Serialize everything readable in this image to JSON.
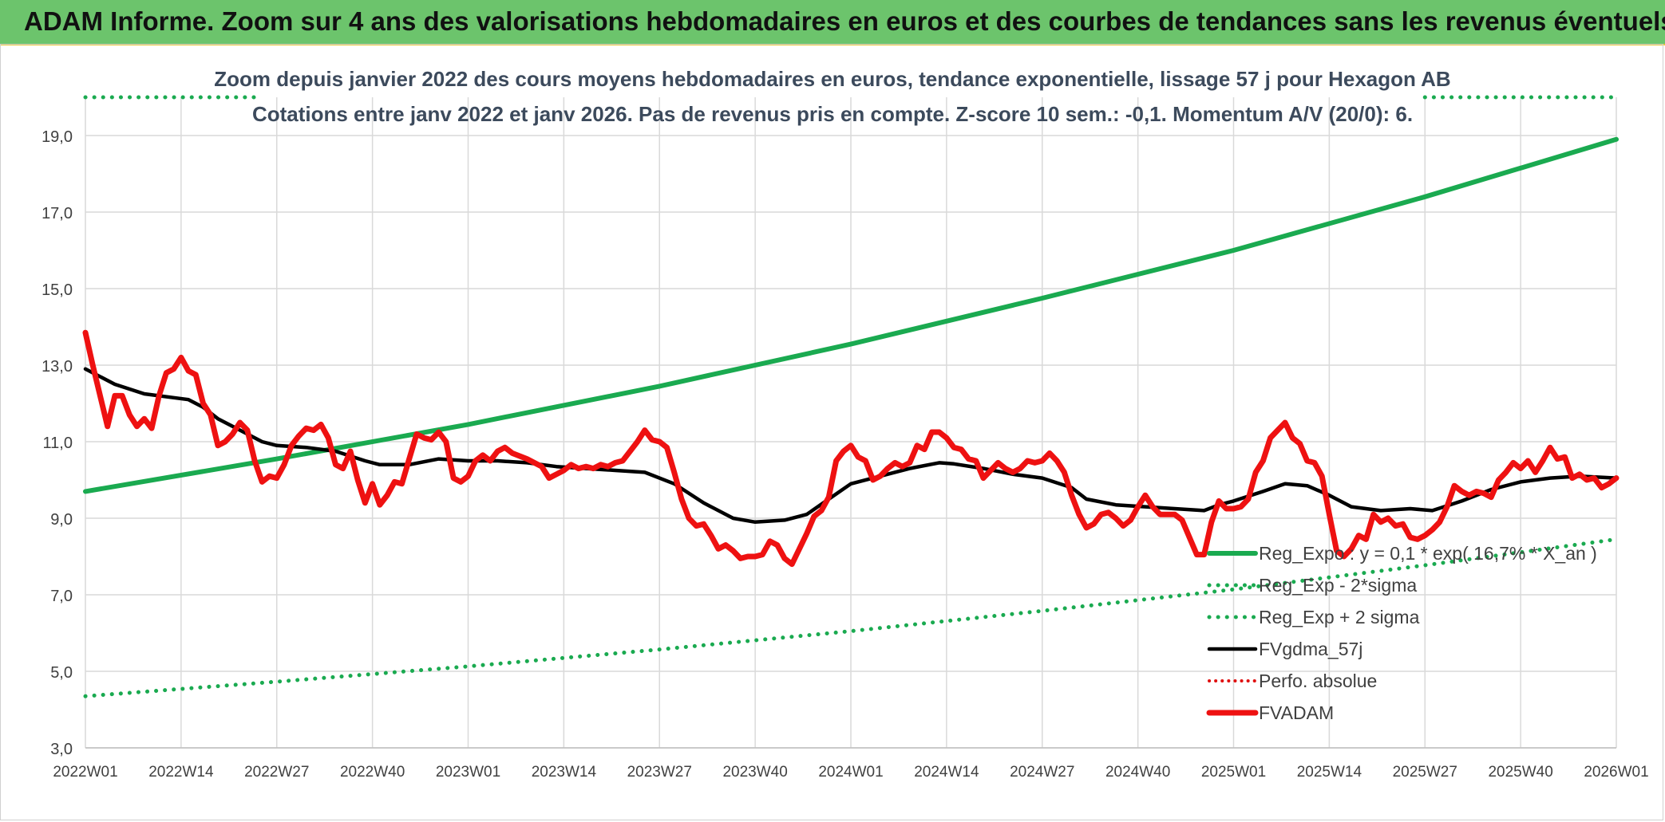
{
  "banner": {
    "title": "ADAM Informe. Zoom sur 4 ans des valorisations hebdomadaires en euros et des courbes de tendances sans les revenus éventuels"
  },
  "chart_data": {
    "type": "line",
    "title": "Zoom depuis janvier 2022 des cours moyens hebdomadaires en euros, tendance exponentielle, lissage 57 j pour Hexagon AB",
    "subtitle": "Cotations entre janv 2022 et janv 2026. Pas de revenus pris en compte. Z-score 10 sem.: -0,1. Momentum A/V (20/0): 6.",
    "xlabel": "",
    "ylabel": "",
    "ylim": [
      3,
      20
    ],
    "yticks": [
      "3,0",
      "5,0",
      "7,0",
      "9,0",
      "11,0",
      "13,0",
      "15,0",
      "17,0",
      "19,0"
    ],
    "ytick_values": [
      3,
      5,
      7,
      9,
      11,
      13,
      15,
      17,
      19
    ],
    "xlim": [
      0,
      208
    ],
    "xticks": [
      "2022W01",
      "2022W14",
      "2022W27",
      "2022W40",
      "2023W01",
      "2023W14",
      "2023W27",
      "2023W40",
      "2024W01",
      "2024W14",
      "2024W27",
      "2024W40",
      "2025W01",
      "2025W14",
      "2025W27",
      "2025W40",
      "2026W01"
    ],
    "xtick_positions": [
      0,
      13,
      26,
      39,
      52,
      65,
      78,
      91,
      104,
      117,
      130,
      143,
      156,
      169,
      182,
      195,
      208
    ],
    "grid": true,
    "legend_position": "bottom-right",
    "colors": {
      "reg_expo": "#1aaa50",
      "bands": "#1aaa50",
      "fvgdma": "#000000",
      "perfo": "#e01010",
      "fvadam": "#ee1111"
    },
    "series": [
      {
        "name": "Reg_Expo : y = 0,1 * exp( 16,7% * X_an )",
        "style": "solid",
        "points": [
          [
            0,
            9.7
          ],
          [
            26,
            10.55
          ],
          [
            52,
            11.45
          ],
          [
            78,
            12.45
          ],
          [
            104,
            13.55
          ],
          [
            130,
            14.75
          ],
          [
            156,
            16.0
          ],
          [
            182,
            17.4
          ],
          [
            208,
            18.9
          ]
        ]
      },
      {
        "name": "Reg_Exp - 2*sigma",
        "style": "dotted",
        "points": [
          [
            0,
            4.35
          ],
          [
            26,
            4.73
          ],
          [
            52,
            5.13
          ],
          [
            78,
            5.57
          ],
          [
            104,
            6.05
          ],
          [
            130,
            6.58
          ],
          [
            156,
            7.14
          ],
          [
            182,
            7.77
          ],
          [
            208,
            8.45
          ]
        ]
      },
      {
        "name": "Reg_Exp + 2 sigma",
        "style": "dotted",
        "points": [
          [
            0,
            20.0
          ],
          [
            208,
            20.0
          ]
        ]
      },
      {
        "name": "FVgdma_57j",
        "style": "solid",
        "points": [
          [
            0,
            12.9
          ],
          [
            4,
            12.5
          ],
          [
            8,
            12.25
          ],
          [
            12,
            12.15
          ],
          [
            14,
            12.1
          ],
          [
            16,
            11.9
          ],
          [
            18,
            11.6
          ],
          [
            20,
            11.4
          ],
          [
            22,
            11.2
          ],
          [
            24,
            11.0
          ],
          [
            26,
            10.9
          ],
          [
            30,
            10.85
          ],
          [
            34,
            10.75
          ],
          [
            38,
            10.5
          ],
          [
            40,
            10.4
          ],
          [
            44,
            10.4
          ],
          [
            48,
            10.55
          ],
          [
            52,
            10.5
          ],
          [
            56,
            10.5
          ],
          [
            60,
            10.45
          ],
          [
            64,
            10.35
          ],
          [
            68,
            10.3
          ],
          [
            72,
            10.25
          ],
          [
            76,
            10.2
          ],
          [
            80,
            9.9
          ],
          [
            84,
            9.4
          ],
          [
            88,
            9.0
          ],
          [
            91,
            8.9
          ],
          [
            95,
            8.95
          ],
          [
            98,
            9.1
          ],
          [
            101,
            9.5
          ],
          [
            104,
            9.9
          ],
          [
            108,
            10.1
          ],
          [
            112,
            10.3
          ],
          [
            116,
            10.45
          ],
          [
            118,
            10.42
          ],
          [
            122,
            10.3
          ],
          [
            126,
            10.15
          ],
          [
            130,
            10.05
          ],
          [
            134,
            9.8
          ],
          [
            136,
            9.5
          ],
          [
            140,
            9.35
          ],
          [
            144,
            9.3
          ],
          [
            148,
            9.25
          ],
          [
            152,
            9.2
          ],
          [
            154,
            9.35
          ],
          [
            156,
            9.45
          ],
          [
            160,
            9.7
          ],
          [
            163,
            9.9
          ],
          [
            166,
            9.85
          ],
          [
            169,
            9.6
          ],
          [
            172,
            9.3
          ],
          [
            176,
            9.2
          ],
          [
            180,
            9.25
          ],
          [
            183,
            9.2
          ],
          [
            187,
            9.45
          ],
          [
            191,
            9.75
          ],
          [
            195,
            9.95
          ],
          [
            199,
            10.05
          ],
          [
            203,
            10.1
          ],
          [
            208,
            10.05
          ]
        ]
      },
      {
        "name": "Perfo. absolue",
        "style": "dotted",
        "points": []
      },
      {
        "name": "FVADAM",
        "style": "solid",
        "points": [
          [
            0,
            13.85
          ],
          [
            1,
            13.0
          ],
          [
            3,
            11.4
          ],
          [
            4,
            12.2
          ],
          [
            5,
            12.2
          ],
          [
            6,
            11.7
          ],
          [
            7,
            11.4
          ],
          [
            8,
            11.6
          ],
          [
            9,
            11.35
          ],
          [
            10,
            12.2
          ],
          [
            11,
            12.8
          ],
          [
            12,
            12.9
          ],
          [
            13,
            13.2
          ],
          [
            14,
            12.85
          ],
          [
            15,
            12.75
          ],
          [
            16,
            12.0
          ],
          [
            17,
            11.7
          ],
          [
            18,
            10.9
          ],
          [
            19,
            11.0
          ],
          [
            20,
            11.2
          ],
          [
            21,
            11.5
          ],
          [
            22,
            11.3
          ],
          [
            23,
            10.5
          ],
          [
            24,
            9.95
          ],
          [
            25,
            10.1
          ],
          [
            26,
            10.05
          ],
          [
            27,
            10.4
          ],
          [
            28,
            10.9
          ],
          [
            29,
            11.15
          ],
          [
            30,
            11.35
          ],
          [
            31,
            11.3
          ],
          [
            32,
            11.45
          ],
          [
            33,
            11.1
          ],
          [
            34,
            10.4
          ],
          [
            35,
            10.3
          ],
          [
            36,
            10.75
          ],
          [
            37,
            10.0
          ],
          [
            38,
            9.4
          ],
          [
            39,
            9.9
          ],
          [
            40,
            9.35
          ],
          [
            41,
            9.6
          ],
          [
            42,
            9.95
          ],
          [
            43,
            9.9
          ],
          [
            44,
            10.55
          ],
          [
            45,
            11.2
          ],
          [
            46,
            11.1
          ],
          [
            47,
            11.05
          ],
          [
            48,
            11.25
          ],
          [
            49,
            11.0
          ],
          [
            50,
            10.05
          ],
          [
            51,
            9.95
          ],
          [
            52,
            10.1
          ],
          [
            53,
            10.5
          ],
          [
            54,
            10.65
          ],
          [
            55,
            10.5
          ],
          [
            56,
            10.75
          ],
          [
            57,
            10.85
          ],
          [
            58,
            10.7
          ],
          [
            60,
            10.55
          ],
          [
            62,
            10.35
          ],
          [
            63,
            10.05
          ],
          [
            64,
            10.15
          ],
          [
            65,
            10.25
          ],
          [
            66,
            10.4
          ],
          [
            67,
            10.3
          ],
          [
            68,
            10.35
          ],
          [
            69,
            10.3
          ],
          [
            70,
            10.4
          ],
          [
            71,
            10.35
          ],
          [
            72,
            10.45
          ],
          [
            73,
            10.5
          ],
          [
            74,
            10.75
          ],
          [
            75,
            11.0
          ],
          [
            76,
            11.3
          ],
          [
            77,
            11.05
          ],
          [
            78,
            11.0
          ],
          [
            79,
            10.85
          ],
          [
            80,
            10.2
          ],
          [
            81,
            9.5
          ],
          [
            82,
            9.0
          ],
          [
            83,
            8.8
          ],
          [
            84,
            8.85
          ],
          [
            85,
            8.55
          ],
          [
            86,
            8.2
          ],
          [
            87,
            8.3
          ],
          [
            88,
            8.15
          ],
          [
            89,
            7.95
          ],
          [
            90,
            8.0
          ],
          [
            91,
            8.0
          ],
          [
            92,
            8.05
          ],
          [
            93,
            8.4
          ],
          [
            94,
            8.3
          ],
          [
            95,
            7.95
          ],
          [
            96,
            7.8
          ],
          [
            97,
            8.2
          ],
          [
            98,
            8.6
          ],
          [
            99,
            9.05
          ],
          [
            100,
            9.2
          ],
          [
            101,
            9.55
          ],
          [
            102,
            10.5
          ],
          [
            103,
            10.75
          ],
          [
            104,
            10.9
          ],
          [
            105,
            10.6
          ],
          [
            106,
            10.5
          ],
          [
            107,
            10.0
          ],
          [
            108,
            10.1
          ],
          [
            109,
            10.3
          ],
          [
            110,
            10.45
          ],
          [
            111,
            10.35
          ],
          [
            112,
            10.45
          ],
          [
            113,
            10.9
          ],
          [
            114,
            10.8
          ],
          [
            115,
            11.25
          ],
          [
            116,
            11.25
          ],
          [
            117,
            11.1
          ],
          [
            118,
            10.85
          ],
          [
            119,
            10.8
          ],
          [
            120,
            10.55
          ],
          [
            121,
            10.5
          ],
          [
            122,
            10.05
          ],
          [
            123,
            10.25
          ],
          [
            124,
            10.45
          ],
          [
            125,
            10.3
          ],
          [
            126,
            10.2
          ],
          [
            127,
            10.3
          ],
          [
            128,
            10.5
          ],
          [
            129,
            10.45
          ],
          [
            130,
            10.5
          ],
          [
            131,
            10.7
          ],
          [
            132,
            10.5
          ],
          [
            133,
            10.2
          ],
          [
            134,
            9.6
          ],
          [
            135,
            9.1
          ],
          [
            136,
            8.75
          ],
          [
            137,
            8.85
          ],
          [
            138,
            9.1
          ],
          [
            139,
            9.15
          ],
          [
            140,
            9.0
          ],
          [
            141,
            8.8
          ],
          [
            142,
            8.95
          ],
          [
            143,
            9.3
          ],
          [
            144,
            9.6
          ],
          [
            145,
            9.3
          ],
          [
            146,
            9.1
          ],
          [
            147,
            9.1
          ],
          [
            148,
            9.1
          ],
          [
            149,
            8.95
          ],
          [
            150,
            8.5
          ],
          [
            151,
            8.05
          ],
          [
            152,
            8.05
          ],
          [
            153,
            8.9
          ],
          [
            154,
            9.45
          ],
          [
            155,
            9.25
          ],
          [
            156,
            9.25
          ],
          [
            157,
            9.3
          ],
          [
            158,
            9.5
          ],
          [
            159,
            10.2
          ],
          [
            160,
            10.5
          ],
          [
            161,
            11.1
          ],
          [
            162,
            11.3
          ],
          [
            163,
            11.5
          ],
          [
            164,
            11.1
          ],
          [
            165,
            10.95
          ],
          [
            166,
            10.5
          ],
          [
            167,
            10.45
          ],
          [
            168,
            10.1
          ],
          [
            169,
            9.1
          ],
          [
            170,
            8.15
          ],
          [
            171,
            8.0
          ],
          [
            172,
            8.2
          ],
          [
            173,
            8.55
          ],
          [
            174,
            8.45
          ],
          [
            175,
            9.1
          ],
          [
            176,
            8.9
          ],
          [
            177,
            9.0
          ],
          [
            178,
            8.8
          ],
          [
            179,
            8.85
          ],
          [
            180,
            8.5
          ],
          [
            181,
            8.45
          ],
          [
            182,
            8.55
          ],
          [
            183,
            8.7
          ],
          [
            184,
            8.9
          ],
          [
            185,
            9.3
          ],
          [
            186,
            9.85
          ],
          [
            187,
            9.7
          ],
          [
            188,
            9.6
          ],
          [
            189,
            9.7
          ],
          [
            190,
            9.65
          ],
          [
            191,
            9.55
          ],
          [
            192,
            10.0
          ],
          [
            193,
            10.2
          ],
          [
            194,
            10.45
          ],
          [
            195,
            10.3
          ],
          [
            196,
            10.5
          ],
          [
            197,
            10.2
          ],
          [
            198,
            10.5
          ],
          [
            199,
            10.85
          ],
          [
            200,
            10.55
          ],
          [
            201,
            10.6
          ],
          [
            202,
            10.05
          ],
          [
            203,
            10.15
          ],
          [
            204,
            10.0
          ],
          [
            205,
            10.05
          ],
          [
            206,
            9.8
          ],
          [
            207,
            9.9
          ],
          [
            208,
            10.05
          ]
        ]
      }
    ]
  }
}
